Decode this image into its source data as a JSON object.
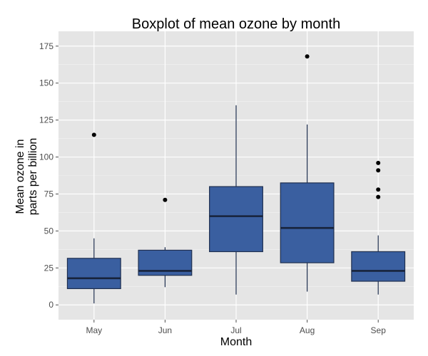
{
  "chart_data": {
    "type": "boxplot",
    "title": "Boxplot of mean ozone by month",
    "xlabel": "Month",
    "ylabel": [
      "Mean ozone in",
      "parts per billion"
    ],
    "categories": [
      "May",
      "Jun",
      "Jul",
      "Aug",
      "Sep"
    ],
    "ylim": [
      -10,
      185
    ],
    "yticks": [
      0,
      25,
      50,
      75,
      100,
      125,
      150,
      175
    ],
    "grid": true,
    "colors": {
      "panel": "#e5e5e5",
      "grid": "#ffffff",
      "box_fill": "#3a5fa0",
      "box_stroke": "#1f2f4f",
      "outlier": "#000000"
    },
    "boxes": [
      {
        "category": "May",
        "whisker_low": 1,
        "q1": 11,
        "median": 18,
        "q3": 31.5,
        "whisker_high": 45,
        "outliers": [
          115
        ]
      },
      {
        "category": "Jun",
        "whisker_low": 12,
        "q1": 20,
        "median": 23,
        "q3": 37,
        "whisker_high": 39,
        "outliers": [
          71
        ]
      },
      {
        "category": "Jul",
        "whisker_low": 7,
        "q1": 36,
        "median": 60,
        "q3": 80,
        "whisker_high": 135,
        "outliers": []
      },
      {
        "category": "Aug",
        "whisker_low": 9,
        "q1": 28.5,
        "median": 52,
        "q3": 82.5,
        "whisker_high": 122,
        "outliers": [
          168
        ]
      },
      {
        "category": "Sep",
        "whisker_low": 7,
        "q1": 16,
        "median": 23,
        "q3": 36,
        "whisker_high": 47,
        "outliers": [
          73,
          78,
          91,
          96
        ]
      }
    ]
  }
}
